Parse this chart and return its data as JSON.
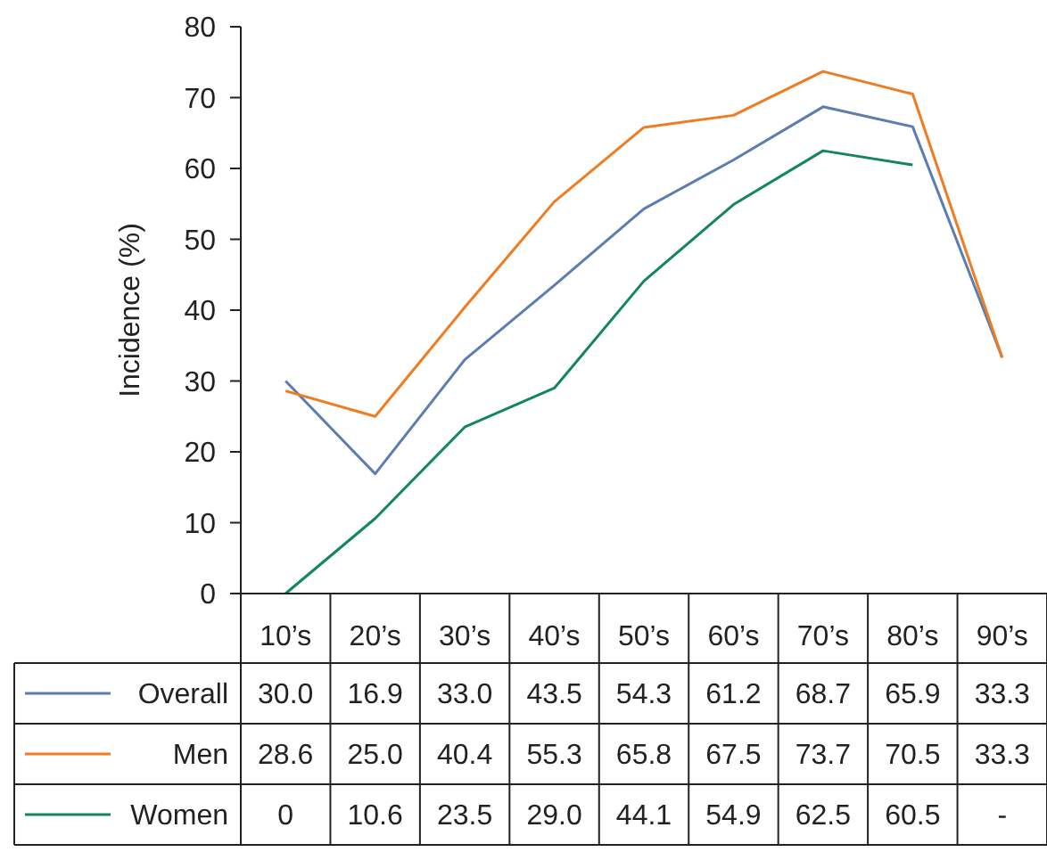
{
  "chart_data": {
    "type": "line",
    "ylabel": "Incidence (%)",
    "categories": [
      "10’s",
      "20’s",
      "30’s",
      "40’s",
      "50’s",
      "60’s",
      "70’s",
      "80’s",
      "90’s"
    ],
    "ylim": [
      0,
      80
    ],
    "yticks": [
      0,
      10,
      20,
      30,
      40,
      50,
      60,
      70,
      80
    ],
    "grid": false,
    "legend": "bottom left",
    "marker": "none",
    "line_style": "solid",
    "series": [
      {
        "name": "Overall",
        "color": "#5b7db1",
        "values": [
          30.0,
          16.9,
          33.0,
          43.5,
          54.3,
          61.2,
          68.7,
          65.9,
          33.3
        ],
        "value_labels": [
          "30.0",
          "16.9",
          "33.0",
          "43.5",
          "54.3",
          "61.2",
          "68.7",
          "65.9",
          "33.3"
        ]
      },
      {
        "name": "Men",
        "color": "#f07c22",
        "values": [
          28.6,
          25.0,
          40.4,
          55.3,
          65.8,
          67.5,
          73.7,
          70.5,
          33.3
        ],
        "value_labels": [
          "28.6",
          "25.0",
          "40.4",
          "55.3",
          "65.8",
          "67.5",
          "73.7",
          "70.5",
          "33.3"
        ]
      },
      {
        "name": "Women",
        "color": "#12875a",
        "values": [
          0,
          10.6,
          23.5,
          29.0,
          44.1,
          54.9,
          62.5,
          60.5,
          null
        ],
        "value_labels": [
          "0",
          "10.6",
          "23.5",
          "29.0",
          "44.1",
          "54.9",
          "62.5",
          "60.5",
          "-"
        ]
      }
    ]
  }
}
